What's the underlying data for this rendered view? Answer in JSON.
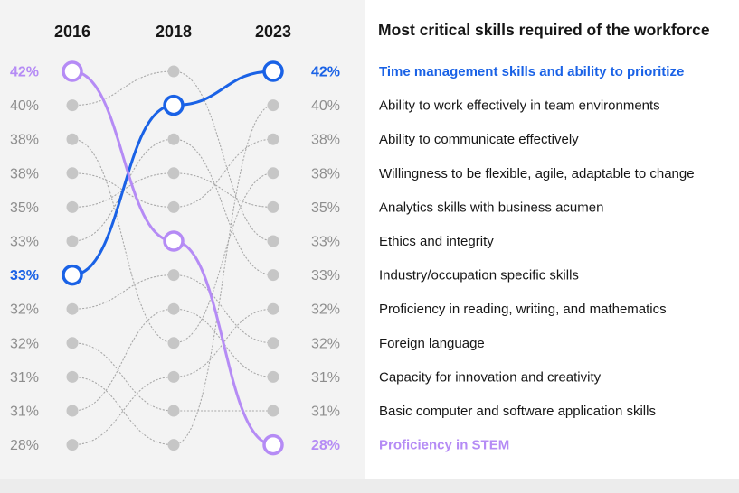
{
  "chart_data": {
    "type": "line",
    "title": "Most critical skills required of the workforce",
    "years": [
      "2016",
      "2018",
      "2023"
    ],
    "rank_labels_2016": [
      "42%",
      "40%",
      "38%",
      "38%",
      "35%",
      "33%",
      "33%",
      "32%",
      "32%",
      "31%",
      "31%",
      "28%"
    ],
    "rank_labels_2023": [
      "42%",
      "40%",
      "38%",
      "38%",
      "35%",
      "33%",
      "33%",
      "32%",
      "32%",
      "31%",
      "31%",
      "28%"
    ],
    "skills": [
      "Time management skills and ability to prioritize",
      "Ability to work effectively in team environments",
      "Ability to communicate effectively",
      "Willingness to be flexible, agile, adaptable to change",
      "Analytics skills with business acumen",
      "Ethics and integrity",
      "Industry/occupation specific skills",
      "Proficiency in reading, writing, and mathematics",
      "Foreign language",
      "Capacity for innovation and creativity",
      "Basic computer and software application skills",
      "Proficiency in STEM"
    ],
    "series": [
      {
        "name": "Time management skills and ability to prioritize",
        "ranks": [
          7,
          2,
          1
        ],
        "highlight": "blue"
      },
      {
        "name": "Proficiency in STEM",
        "ranks": [
          1,
          6,
          12
        ],
        "highlight": "purple"
      },
      {
        "ranks": [
          10,
          12,
          2
        ]
      },
      {
        "ranks": [
          4,
          5,
          3
        ]
      },
      {
        "ranks": [
          3,
          9,
          4
        ]
      },
      {
        "ranks": [
          5,
          4,
          5
        ]
      },
      {
        "ranks": [
          2,
          1,
          6
        ]
      },
      {
        "ranks": [
          6,
          3,
          7
        ]
      },
      {
        "ranks": [
          12,
          10,
          8
        ]
      },
      {
        "ranks": [
          8,
          7,
          9
        ]
      },
      {
        "ranks": [
          11,
          8,
          10
        ]
      },
      {
        "ranks": [
          9,
          11,
          11
        ]
      }
    ],
    "colors": {
      "blue": "#1a62e6",
      "purple": "#b58bf5",
      "gray_dot": "#c6c6c6",
      "gray_line": "#a8a8a8",
      "gray_text": "#8d8d8d"
    }
  }
}
